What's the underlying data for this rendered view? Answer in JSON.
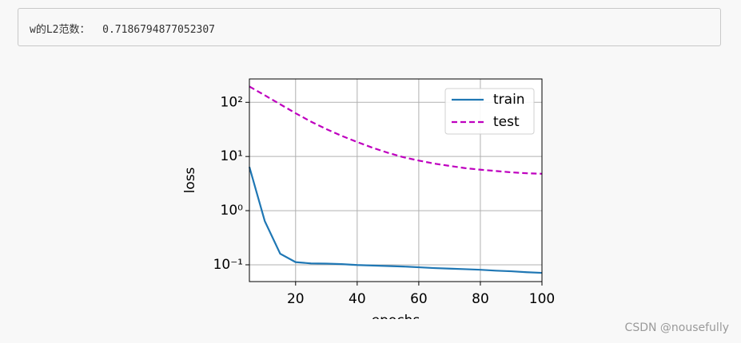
{
  "output_text": "w的L2范数：  0.7186794877052307",
  "watermark": "CSDN @nousefully",
  "chart_data": {
    "type": "line",
    "x_label": "epochs",
    "y_label": "loss",
    "x": [
      5,
      10,
      15,
      20,
      25,
      30,
      35,
      40,
      45,
      50,
      55,
      60,
      65,
      70,
      75,
      80,
      85,
      90,
      95,
      100
    ],
    "series": [
      {
        "name": "train",
        "color": "#1f77b4",
        "dash": false,
        "values": [
          6.4,
          0.64,
          0.16,
          0.112,
          0.106,
          0.105,
          0.103,
          0.099,
          0.097,
          0.095,
          0.093,
          0.09,
          0.087,
          0.085,
          0.083,
          0.081,
          0.078,
          0.076,
          0.073,
          0.071
        ]
      },
      {
        "name": "test",
        "color": "#bf00bf",
        "dash": true,
        "values": [
          196,
          135,
          92,
          63,
          44,
          32,
          24,
          18.5,
          14.5,
          11.7,
          9.7,
          8.4,
          7.4,
          6.7,
          6.1,
          5.7,
          5.4,
          5.1,
          4.9,
          4.8
        ]
      }
    ],
    "xlim": [
      5,
      100
    ],
    "xticks": [
      20,
      40,
      60,
      80,
      100
    ],
    "ylim": [
      0.049,
      270
    ],
    "log_y": true,
    "yticks": [
      {
        "value": 0.1,
        "label": "10⁻¹"
      },
      {
        "value": 1,
        "label": "10⁰"
      },
      {
        "value": 10,
        "label": "10¹"
      },
      {
        "value": 100,
        "label": "10²"
      }
    ],
    "grid": true,
    "legend": "upper right"
  }
}
